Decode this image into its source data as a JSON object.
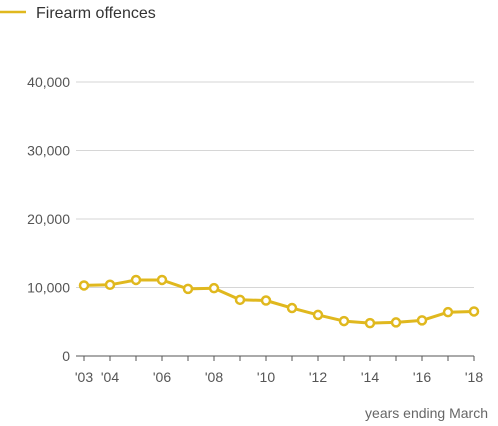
{
  "legend": {
    "label": "Firearm offences"
  },
  "colors": {
    "series": "#e0b81e",
    "grid": "#d6d6d6",
    "axis": "#555555",
    "marker_fill": "#ffffff"
  },
  "chart_data": {
    "type": "line",
    "xlabel": "years ending March",
    "ylabel": "",
    "ylim": [
      0,
      40000
    ],
    "y_ticks": [
      0,
      10000,
      20000,
      30000,
      40000
    ],
    "y_tick_labels": [
      "0",
      "10,000",
      "20,000",
      "30,000",
      "40,000"
    ],
    "x_tick_labels": [
      "'03",
      "'04",
      "'06",
      "'08",
      "'10",
      "'12",
      "'14",
      "'16",
      "'18"
    ],
    "x_tick_years": [
      2003,
      2004,
      2006,
      2008,
      2010,
      2012,
      2014,
      2016,
      2018
    ],
    "grid": true,
    "legend_position": "top-left",
    "series": [
      {
        "name": "Firearm offences",
        "x": [
          2003,
          2004,
          2005,
          2006,
          2007,
          2008,
          2009,
          2010,
          2011,
          2012,
          2013,
          2014,
          2015,
          2016,
          2017,
          2018
        ],
        "values": [
          10300,
          10400,
          11100,
          11100,
          9800,
          9900,
          8200,
          8100,
          7000,
          6000,
          5100,
          4800,
          4900,
          5200,
          6400,
          6500
        ]
      }
    ]
  }
}
